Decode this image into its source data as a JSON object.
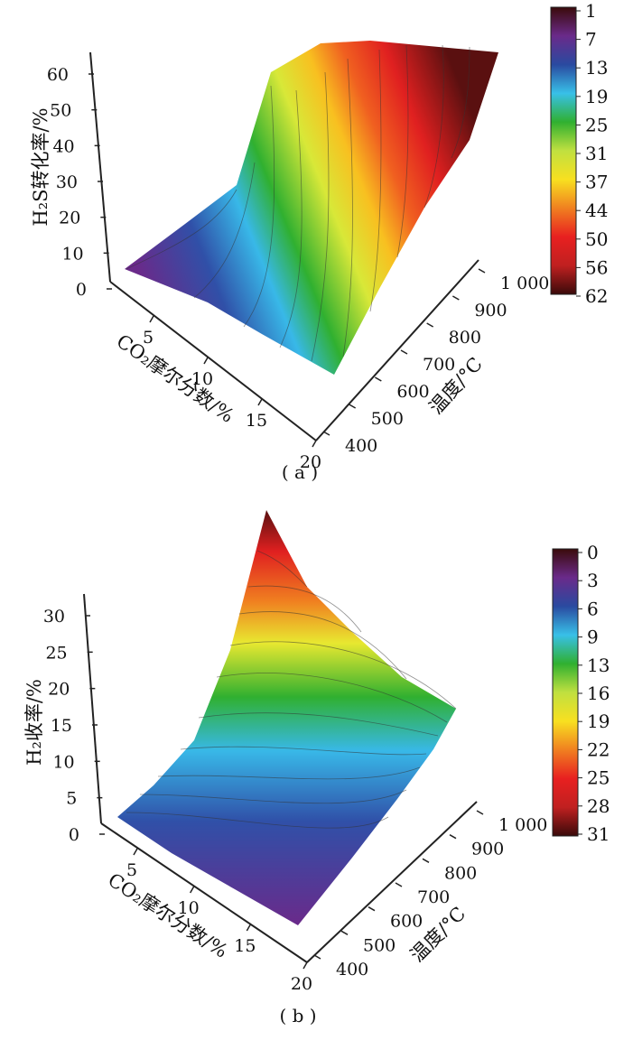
{
  "chart_data": [
    {
      "type": "surface",
      "panel_label": "( a )",
      "zlabel": "H₂S转化率/%",
      "xlabel": "CO₂摩尔分数/%",
      "ylabel": "温度/°C",
      "x_ticks": [
        "5",
        "10",
        "15",
        "20"
      ],
      "y_ticks": [
        "400",
        "500",
        "600",
        "700",
        "800",
        "900",
        "1 000"
      ],
      "z_ticks": [
        "0",
        "10",
        "20",
        "30",
        "40",
        "50",
        "60"
      ],
      "xlim": [
        1,
        20
      ],
      "ylim": [
        400,
        1000
      ],
      "zlim": [
        0,
        65
      ],
      "colorbar_ticks": [
        "1",
        "7",
        "13",
        "19",
        "25",
        "31",
        "37",
        "44",
        "50",
        "56",
        "62"
      ],
      "colormap": [
        "#3a0a0a",
        "#6a2a8a",
        "#2a4aa0",
        "#38c0e8",
        "#30b030",
        "#c0e040",
        "#f8e020",
        "#f08020",
        "#e82020",
        "#c02020",
        "#3a0a0a"
      ],
      "temperatures": [
        400,
        500,
        600,
        700,
        800,
        900,
        1000
      ],
      "co2_fractions": [
        1,
        5,
        10,
        15,
        20
      ],
      "z_values": [
        [
          5,
          12,
          30,
          55,
          63,
          65,
          65
        ],
        [
          4,
          10,
          27,
          50,
          60,
          63,
          64
        ],
        [
          3,
          8,
          22,
          43,
          55,
          60,
          62
        ],
        [
          2,
          6,
          17,
          36,
          48,
          55,
          58
        ],
        [
          1,
          4,
          12,
          28,
          40,
          48,
          52
        ]
      ]
    },
    {
      "type": "surface",
      "panel_label": "( b )",
      "zlabel": "H₂收率/%",
      "xlabel": "CO₂摩尔分数/%",
      "ylabel": "温度/°C",
      "x_ticks": [
        "5",
        "10",
        "15",
        "20"
      ],
      "y_ticks": [
        "400",
        "500",
        "600",
        "700",
        "800",
        "900",
        "1 000"
      ],
      "z_ticks": [
        "0",
        "5",
        "10",
        "15",
        "20",
        "25",
        "30"
      ],
      "xlim": [
        1,
        20
      ],
      "ylim": [
        400,
        1000
      ],
      "zlim": [
        0,
        32
      ],
      "colorbar_ticks": [
        "0",
        "3",
        "6",
        "9",
        "13",
        "16",
        "19",
        "22",
        "25",
        "28",
        "31"
      ],
      "colormap": [
        "#3a0a0a",
        "#6a2a8a",
        "#2a4aa0",
        "#38c0e8",
        "#30b030",
        "#c0e040",
        "#f8e020",
        "#f08020",
        "#e82020",
        "#c02020",
        "#3a0a0a"
      ],
      "temperatures": [
        400,
        500,
        600,
        700,
        800,
        900,
        1000
      ],
      "co2_fractions": [
        1,
        5,
        10,
        15,
        20
      ],
      "z_values": [
        [
          0.5,
          2,
          5,
          10,
          17,
          24,
          31
        ],
        [
          0.5,
          2,
          5,
          10,
          16,
          21,
          25
        ],
        [
          0.4,
          2,
          5,
          10,
          15,
          19,
          22
        ],
        [
          0.4,
          2,
          5,
          10,
          14,
          17,
          20
        ],
        [
          0.3,
          2,
          5,
          9,
          13,
          16,
          18
        ]
      ]
    }
  ]
}
